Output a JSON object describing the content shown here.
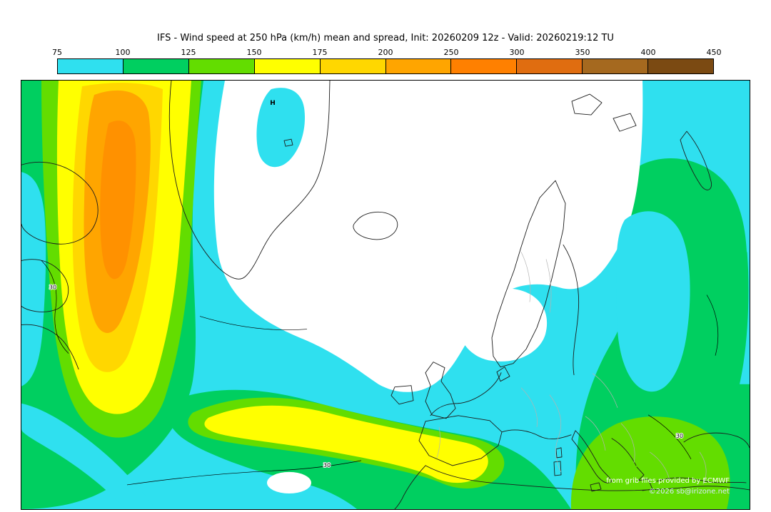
{
  "title": "IFS - Wind speed at 250 hPa (km/h) mean and spread, Init: 20260209 12z - Valid: 20260219:12 TU",
  "colorbar": {
    "tick_labels": [
      "75",
      "100",
      "125",
      "150",
      "175",
      "200",
      "250",
      "300",
      "350",
      "400",
      "450"
    ],
    "segment_colors": [
      "#2fe0ef",
      "#00cf60",
      "#63dd00",
      "#ffff00",
      "#ffd700",
      "#ffa500",
      "#ff8000",
      "#e06d10",
      "#a5691f",
      "#7b4a12"
    ]
  },
  "colors": {
    "white": "#ffffff",
    "orange_core": "#ff9100",
    "coastline": "#1c1c1c",
    "border": "#b3b3b3",
    "contour": "#000000"
  },
  "map": {
    "marker_label": "H",
    "contour_labels": [
      "30",
      "30",
      "30"
    ],
    "attribution_line1": "from grib files provided by ECMWF",
    "attribution_line2": "©2026 sb@irizone.net"
  },
  "chart_data": {
    "type": "heatmap",
    "model": "IFS",
    "variable": "Wind speed",
    "level": "250 hPa",
    "units": "km/h",
    "statistic": "mean and spread",
    "init": "20260209 12z",
    "valid": "20260219:12 TU",
    "contour_levels": [
      75,
      100,
      125,
      150,
      175,
      200,
      250,
      300,
      350,
      400,
      450
    ],
    "palette": [
      "#2fe0ef",
      "#00cf60",
      "#63dd00",
      "#ffff00",
      "#ffd700",
      "#ffa500",
      "#ff8000",
      "#e06d10",
      "#a5691f",
      "#7b4a12"
    ],
    "spread_contour_value": 30,
    "notable_features": [
      {
        "region": "Baffin Bay / Davis Strait (top left)",
        "value_range": "200-250 km/h",
        "description": "elongated orange jet maximum surrounded by gold and yellow bands"
      },
      {
        "region": "west edge of domain",
        "value_range": "150-200 km/h",
        "description": "yellow band wrapping the maximum, green and cyan rings outward"
      },
      {
        "region": "central North Atlantic toward Iberia",
        "value_range": "150-175 km/h",
        "description": "yellow jet streak sweeping southeast toward Spain and the western Mediterranean"
      },
      {
        "region": "Greenland and Arctic basin",
        "value_range": "below 75 km/h",
        "description": "large calm white area with an isolated cyan patch"
      },
      {
        "region": "southern Norway",
        "value_range": "below 75 km/h",
        "description": "small calm white pocket"
      },
      {
        "region": "Scandinavia and eastern Europe",
        "value_range": "100-150 km/h",
        "description": "broad green region with a cyan 75-100 band near the right edge and over the Baltic"
      }
    ]
  }
}
